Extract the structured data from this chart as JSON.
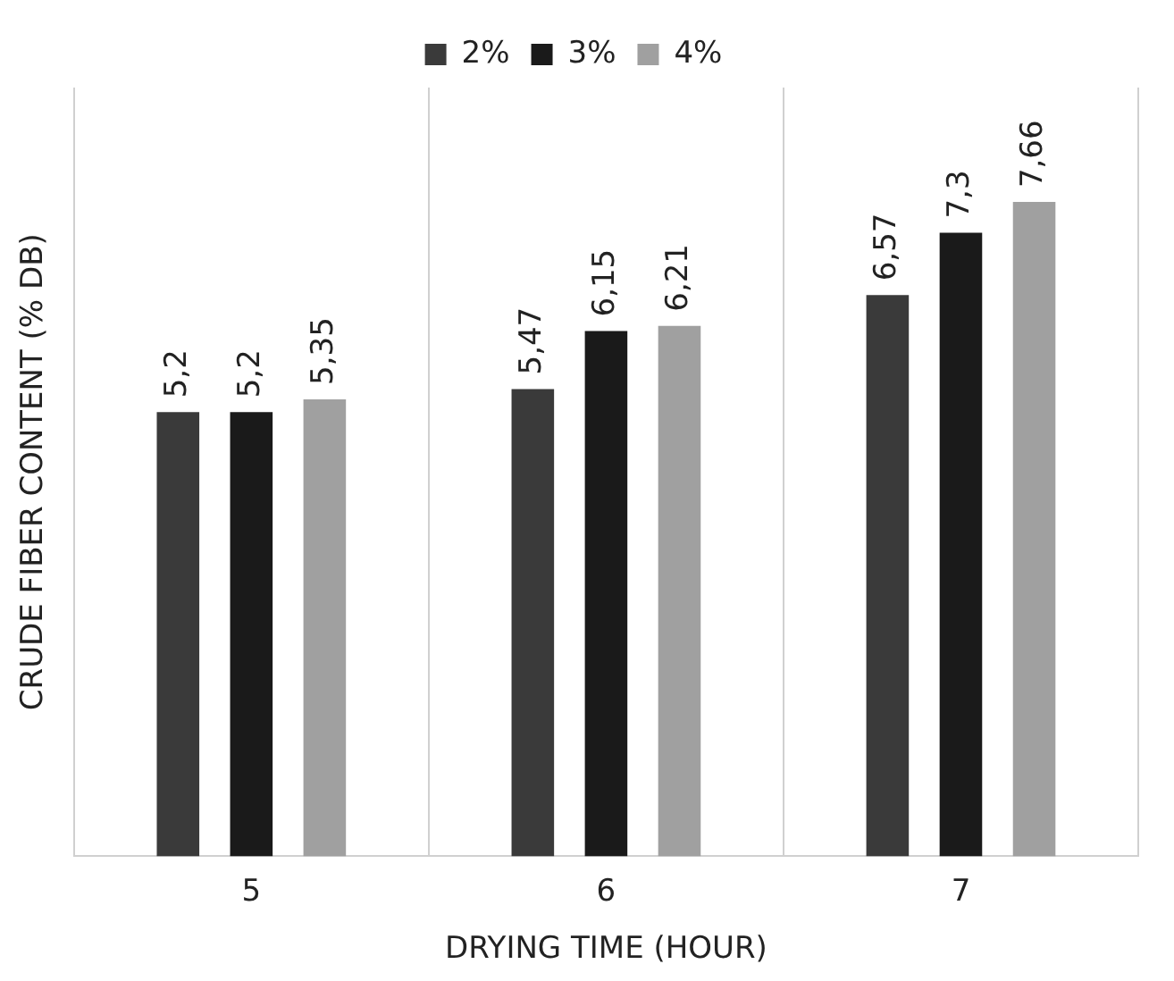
{
  "chart_data": {
    "type": "bar",
    "xlabel": "DRYING TIME (HOUR)",
    "ylabel": "CRUDE FIBER CONTENT (% DB)",
    "categories": [
      "5",
      "6",
      "7"
    ],
    "series": [
      {
        "name": "2%",
        "color": "#3a3a3a",
        "values": [
          5.2,
          5.47,
          6.57
        ],
        "value_labels": [
          "5,2",
          "5,47",
          "6,57"
        ]
      },
      {
        "name": "3%",
        "color": "#1a1a1a",
        "values": [
          5.2,
          6.15,
          7.3
        ],
        "value_labels": [
          "5,2",
          "6,15",
          "7,3"
        ]
      },
      {
        "name": "4%",
        "color": "#a0a0a0",
        "values": [
          5.35,
          6.21,
          7.66
        ],
        "value_labels": [
          "5,35",
          "6,21",
          "7,66"
        ]
      }
    ],
    "grid": "x",
    "legend": "top"
  }
}
